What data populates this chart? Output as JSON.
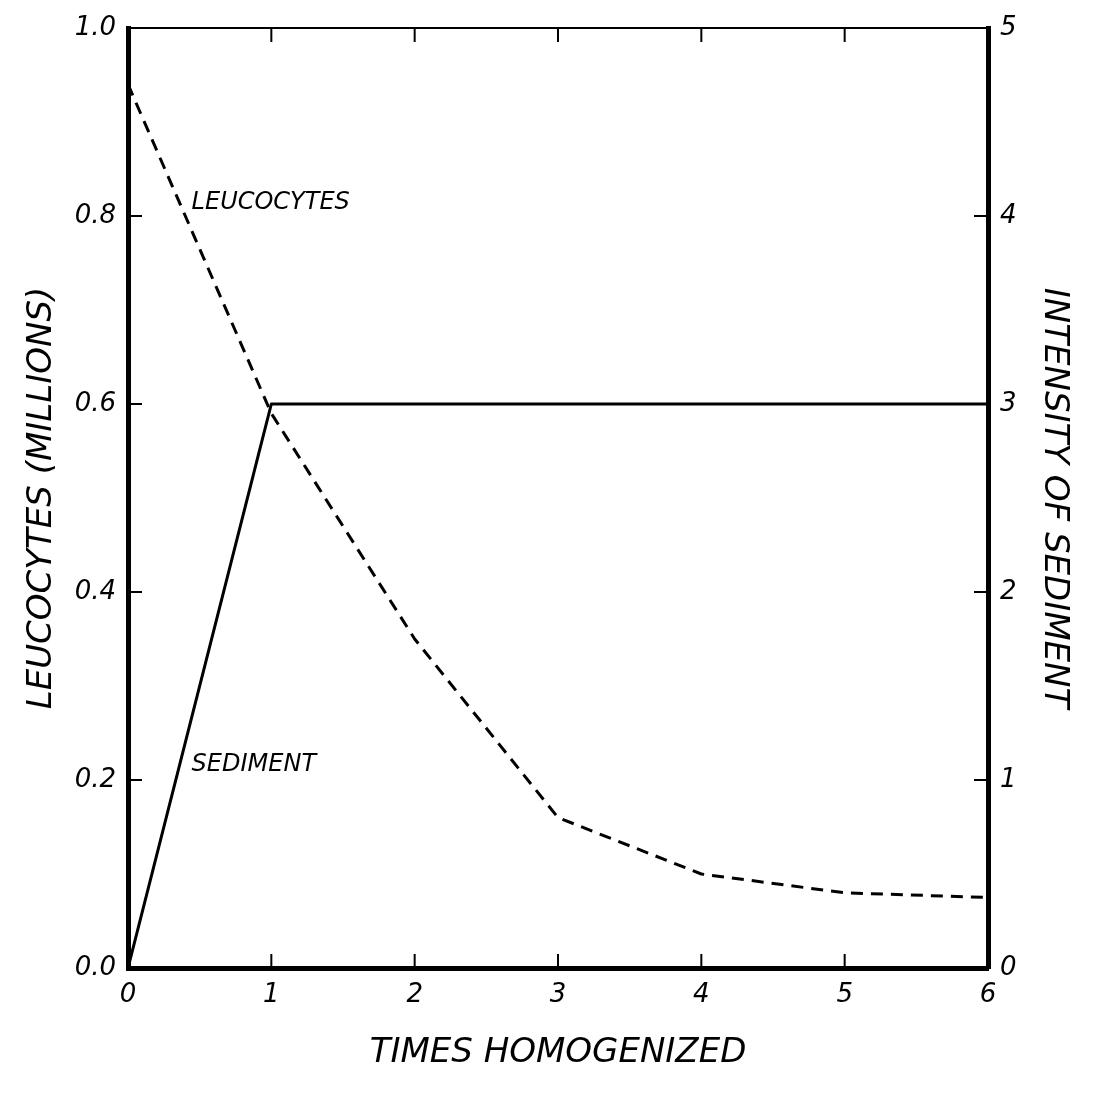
{
  "chart_data": {
    "type": "line",
    "xlabel": "TIMES HOMOGENIZED",
    "ylabel": "LEUCOCYTES (MILLIONS)",
    "y2label": "INTENSITY OF SEDIMENT",
    "x": [
      0,
      1,
      2,
      3,
      4,
      5,
      6
    ],
    "series": [
      {
        "name": "LEUCOCYTES",
        "color": "#000000",
        "line_style": "dashed",
        "values": [
          0.94,
          0.59,
          0.35,
          0.16,
          0.1,
          0.08,
          0.075
        ]
      },
      {
        "name": "SEDIMENT",
        "color": "#000000",
        "line_style": "solid",
        "axis": "y2",
        "values": [
          0,
          3,
          3,
          3,
          3,
          3,
          3
        ]
      }
    ],
    "xlim": [
      0,
      6
    ],
    "xticks": [
      0,
      1,
      2,
      3,
      4,
      5,
      6
    ],
    "ylim": [
      0,
      1
    ],
    "yticks": [
      {
        "value": 0,
        "label": "0.0"
      },
      0.2,
      0.4,
      0.6,
      0.8,
      {
        "value": 1,
        "label": "1.0"
      }
    ],
    "y2lim": [
      0,
      5
    ],
    "y2ticks": [
      0,
      1,
      2,
      3,
      4,
      5
    ],
    "grid": false,
    "legend": false,
    "marker": "none"
  }
}
